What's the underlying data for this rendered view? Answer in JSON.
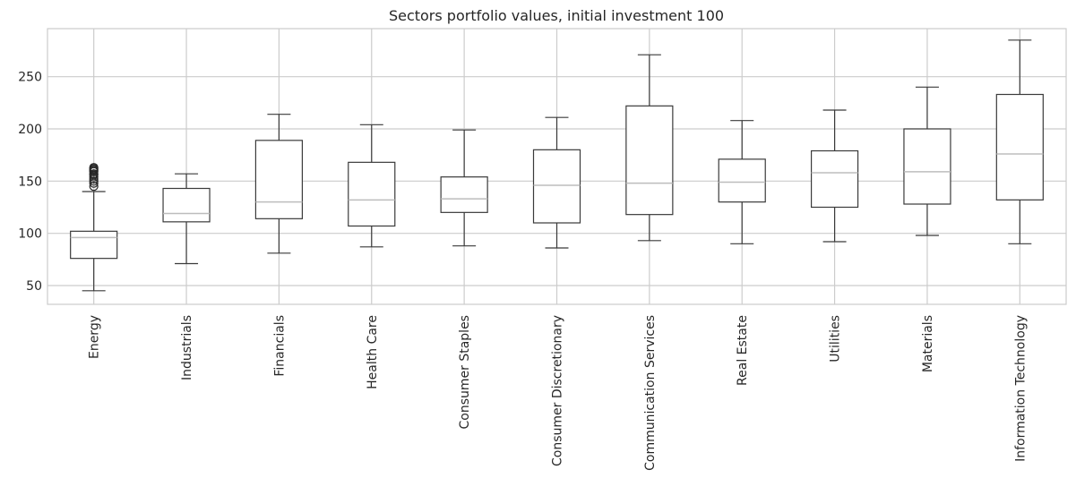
{
  "chart_data": {
    "type": "box",
    "title": "Sectors portfolio values, initial investment 100",
    "xlabel": "",
    "ylabel": "",
    "ylim": [
      32,
      296
    ],
    "yticks": [
      50,
      100,
      150,
      200,
      250
    ],
    "grid": true,
    "categories": [
      "Energy",
      "Industrials",
      "Financials",
      "Health Care",
      "Consumer Staples",
      "Consumer Discretionary",
      "Communication Services",
      "Real Estate",
      "Utilities",
      "Materials",
      "Information Technology"
    ],
    "boxes": [
      {
        "min": 45,
        "q1": 76,
        "median": 96,
        "q3": 102,
        "max": 140,
        "fliers": [
          145,
          148,
          150,
          152,
          154,
          156,
          157,
          159,
          160,
          161,
          162,
          163
        ]
      },
      {
        "min": 71,
        "q1": 111,
        "median": 119,
        "q3": 143,
        "max": 157,
        "fliers": []
      },
      {
        "min": 81,
        "q1": 114,
        "median": 130,
        "q3": 189,
        "max": 214,
        "fliers": []
      },
      {
        "min": 87,
        "q1": 107,
        "median": 132,
        "q3": 168,
        "max": 204,
        "fliers": []
      },
      {
        "min": 88,
        "q1": 120,
        "median": 133,
        "q3": 154,
        "max": 199,
        "fliers": []
      },
      {
        "min": 86,
        "q1": 110,
        "median": 146,
        "q3": 180,
        "max": 211,
        "fliers": []
      },
      {
        "min": 93,
        "q1": 118,
        "median": 148,
        "q3": 222,
        "max": 271,
        "fliers": []
      },
      {
        "min": 90,
        "q1": 130,
        "median": 149,
        "q3": 171,
        "max": 208,
        "fliers": []
      },
      {
        "min": 92,
        "q1": 125,
        "median": 158,
        "q3": 179,
        "max": 218,
        "fliers": []
      },
      {
        "min": 98,
        "q1": 128,
        "median": 159,
        "q3": 200,
        "max": 240,
        "fliers": []
      },
      {
        "min": 90,
        "q1": 132,
        "median": 176,
        "q3": 233,
        "max": 285,
        "fliers": []
      }
    ]
  }
}
